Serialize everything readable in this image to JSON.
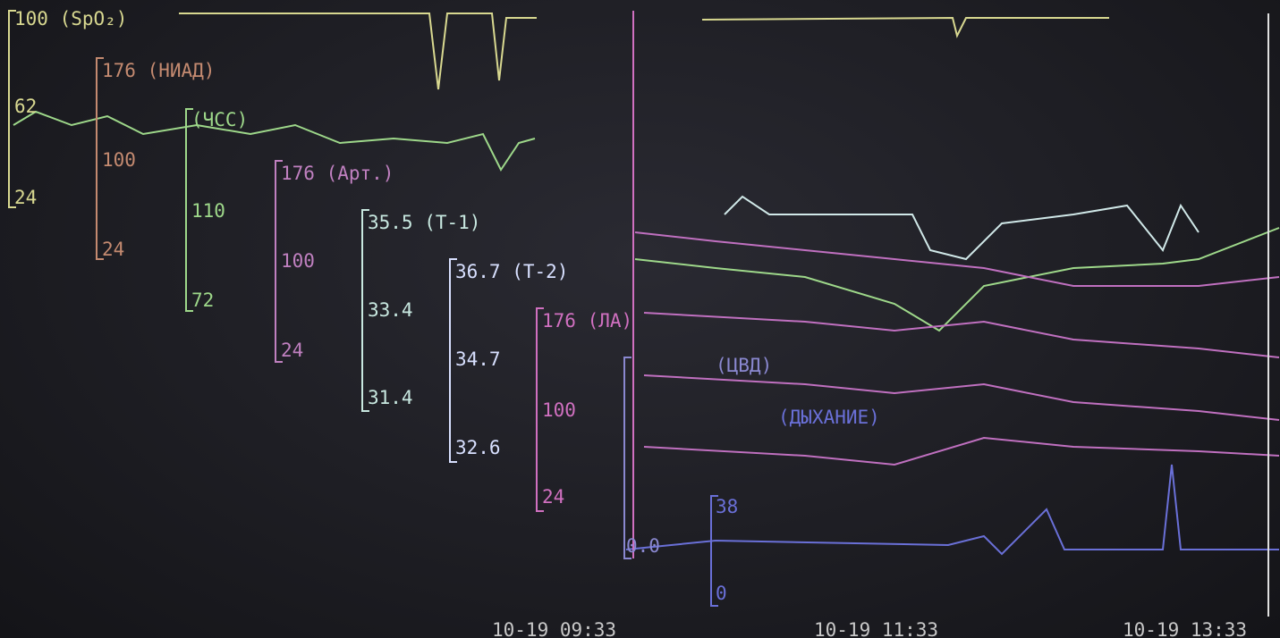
{
  "screen": {
    "scales": [
      {
        "labels": [
          "100 (SpO₂)",
          "62",
          "24"
        ],
        "color": "#d8d890"
      },
      {
        "labels": [
          "176 (НИАД)",
          "100",
          "24"
        ],
        "color": "#c48a70"
      },
      {
        "labels": [
          "(ЧСС)",
          "110",
          "72"
        ],
        "color": "#9ed88a"
      },
      {
        "labels": [
          "176 (Арт.)",
          "100",
          "24"
        ],
        "color": "#c080c0"
      },
      {
        "labels": [
          "35.5 (T-1)",
          "33.4",
          "31.4"
        ],
        "color": "#c8e8e0"
      },
      {
        "labels": [
          "36.7 (T-2)",
          "34.7",
          "32.6"
        ],
        "color": "#d8e0ff"
      },
      {
        "labels": [
          "176 (ЛА)",
          "100",
          "24"
        ],
        "color": "#d070c0"
      },
      {
        "labels": [
          "(ЦВД)",
          "0.0"
        ],
        "color": "#8a88d0"
      },
      {
        "labels": [
          "(ДЫХАНИЕ)",
          "38",
          "0"
        ],
        "color": "#6a70d8"
      }
    ],
    "times": [
      "10-19 09:33",
      "10-19 11:33",
      "10-19 13:33"
    ]
  }
}
